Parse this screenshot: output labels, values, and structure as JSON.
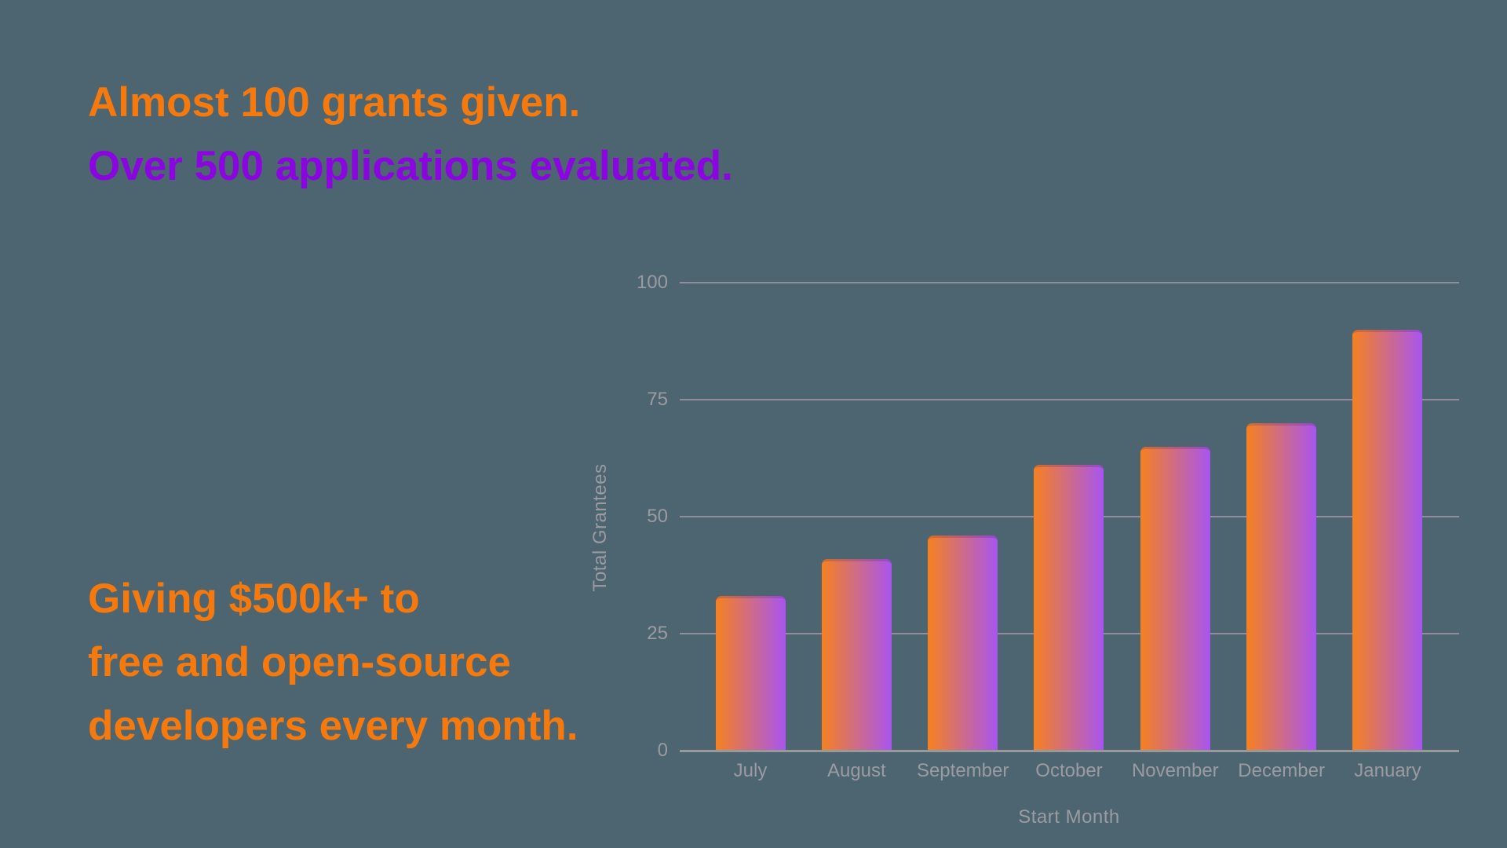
{
  "page": {
    "background_color": "#4C6570"
  },
  "headline": {
    "line1": {
      "text": "Almost 100 grants given.",
      "color": "#F5790D"
    },
    "line2": {
      "text": "Over 500 applications evaluated.",
      "color": "#8B05E0"
    }
  },
  "subheadline": {
    "color": "#F5790D",
    "lines": [
      "Giving $500k+ to",
      "free and open-source",
      "developers every month."
    ]
  },
  "chart_data": {
    "type": "bar",
    "title": "",
    "categories": [
      "July",
      "August",
      "September",
      "October",
      "November",
      "December",
      "January"
    ],
    "values": [
      33,
      41,
      46,
      61,
      65,
      70,
      90
    ],
    "xlabel": "Start Month",
    "ylabel": "Total Grantees",
    "ylim": [
      0,
      100
    ],
    "yticks": [
      0,
      25,
      50,
      75,
      100
    ],
    "grid": true,
    "legend": false,
    "bar_gradient": {
      "from": "#F58120",
      "to": "#A855F0",
      "direction": "to right"
    },
    "gridline_color": "#9C95A5",
    "axis_line_color": "#98999B",
    "label_color": "#9B9BA2"
  }
}
